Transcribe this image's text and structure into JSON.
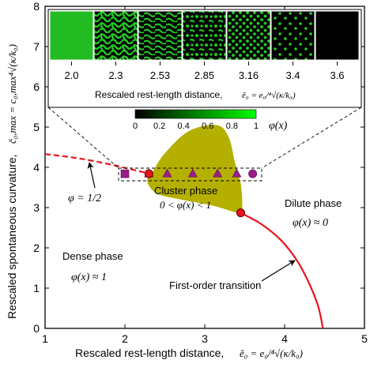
{
  "chart_data": {
    "type": "phase-diagram",
    "xlabel": "Rescaled rest-length distance,",
    "xlabel_symbol": "ĕ₀ = e₀/⁴√(κ/k₀)",
    "ylabel": "Rescaled spontaneous curvature,",
    "ylabel_symbol": "c̆₀,max = c₀,max⁴√(κ/k₀)",
    "xlim": [
      1,
      5
    ],
    "ylim": [
      0,
      8
    ],
    "xticks": [
      "1",
      "2",
      "3",
      "4",
      "5"
    ],
    "yticks": [
      "0",
      "1",
      "2",
      "3",
      "4",
      "5",
      "6",
      "7",
      "8"
    ],
    "phase_labels": {
      "dense": "Dense phase",
      "dense_eq": "φ(x) ≈ 1",
      "cluster": "Cluster phase",
      "cluster_eq": "0 < φ(x) < 1",
      "dilute": "Dilute phase",
      "dilute_eq": "φ(x) ≈ 0"
    },
    "annotations": {
      "phi_half": "φ = 1/2",
      "first_order": "First-order transition"
    },
    "transition_curve": [
      {
        "x": 3.45,
        "y": 2.87
      },
      {
        "x": 3.7,
        "y": 2.6
      },
      {
        "x": 3.95,
        "y": 2.2
      },
      {
        "x": 4.15,
        "y": 1.7
      },
      {
        "x": 4.3,
        "y": 1.15
      },
      {
        "x": 4.42,
        "y": 0.55
      },
      {
        "x": 4.48,
        "y": 0.0
      }
    ],
    "phi_half_curve": [
      {
        "x": 1.0,
        "y": 4.33
      },
      {
        "x": 1.4,
        "y": 4.23
      },
      {
        "x": 1.8,
        "y": 4.08
      },
      {
        "x": 2.1,
        "y": 3.94
      },
      {
        "x": 2.3,
        "y": 3.85
      }
    ],
    "cluster_region": [
      {
        "x": 2.35,
        "y": 3.9
      },
      {
        "x": 2.5,
        "y": 4.35
      },
      {
        "x": 2.8,
        "y": 4.9
      },
      {
        "x": 3.15,
        "y": 5.05
      },
      {
        "x": 3.3,
        "y": 4.75
      },
      {
        "x": 3.38,
        "y": 4.1
      },
      {
        "x": 3.45,
        "y": 3.6
      },
      {
        "x": 3.47,
        "y": 3.05
      },
      {
        "x": 3.43,
        "y": 2.87
      },
      {
        "x": 3.1,
        "y": 3.05
      },
      {
        "x": 2.7,
        "y": 3.2
      },
      {
        "x": 2.4,
        "y": 3.35
      },
      {
        "x": 2.28,
        "y": 3.65
      }
    ],
    "critical_points": [
      {
        "x": 2.3,
        "y": 3.84
      },
      {
        "x": 3.45,
        "y": 2.87
      }
    ],
    "markers": [
      {
        "x": 2.0,
        "shape": "square",
        "y": 3.84
      },
      {
        "x": 2.3,
        "shape": "triangle",
        "y": 3.84
      },
      {
        "x": 2.53,
        "shape": "triangle",
        "y": 3.84
      },
      {
        "x": 2.85,
        "shape": "triangle",
        "y": 3.84
      },
      {
        "x": 3.16,
        "shape": "triangle",
        "y": 3.84
      },
      {
        "x": 3.4,
        "shape": "triangle",
        "y": 3.84
      },
      {
        "x": 3.6,
        "shape": "circle",
        "y": 3.84
      }
    ],
    "inset": {
      "tick_labels": [
        "2.0",
        "2.3",
        "2.53",
        "2.85",
        "3.16",
        "3.4",
        "3.6"
      ],
      "xlabel": "Rescaled rest-length distance,",
      "xlabel_symbol": "ĕ₀ = e₀/⁴√(κ/k₀)",
      "panels": [
        "solid",
        "labyrinth",
        "stripes",
        "stripes-dots",
        "dots",
        "sparse-dots",
        "empty"
      ]
    },
    "colorbar": {
      "ticks": [
        "0",
        "0.2",
        "0.4",
        "0.6",
        "0.8",
        "1"
      ],
      "label": "φ(x)",
      "colors": [
        "#000000",
        "#00ff00"
      ]
    },
    "colors": {
      "cluster_fill": "#b5b000",
      "transition_line": "#e8141c",
      "marker_fill": "#9b1c8c",
      "critical_fill": "#e8141c"
    }
  }
}
